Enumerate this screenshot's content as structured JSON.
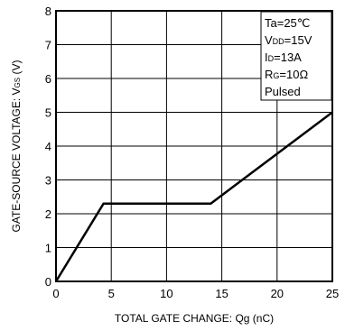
{
  "chart_data": {
    "type": "line",
    "xlabel": "TOTAL GATE CHANGE: Qg (nC)",
    "ylabel_main": "GATE-SOURCE VOLTAGE: V",
    "ylabel_sub": "GS",
    "ylabel_unit": " (V)",
    "xlim": [
      0,
      25
    ],
    "ylim": [
      0,
      8
    ],
    "xticks": [
      0,
      5,
      10,
      15,
      20,
      25
    ],
    "yticks": [
      0,
      1,
      2,
      3,
      4,
      5,
      6,
      7,
      8
    ],
    "grid": true,
    "series": [
      {
        "color": "#000000",
        "x": [
          0,
          4.3,
          14,
          25
        ],
        "y": [
          0,
          2.3,
          2.3,
          5.0
        ]
      }
    ],
    "legend_box": {
      "placement": "top-right",
      "lines": [
        {
          "main": "Ta=25℃",
          "sub": ""
        },
        {
          "main": "V",
          "sub": "DD",
          "rest": "=15V"
        },
        {
          "main": "I",
          "sub": "D",
          "rest": "=13A"
        },
        {
          "main": "R",
          "sub": "G",
          "rest": "=10Ω"
        },
        {
          "main": "Pulsed",
          "sub": ""
        }
      ]
    }
  }
}
